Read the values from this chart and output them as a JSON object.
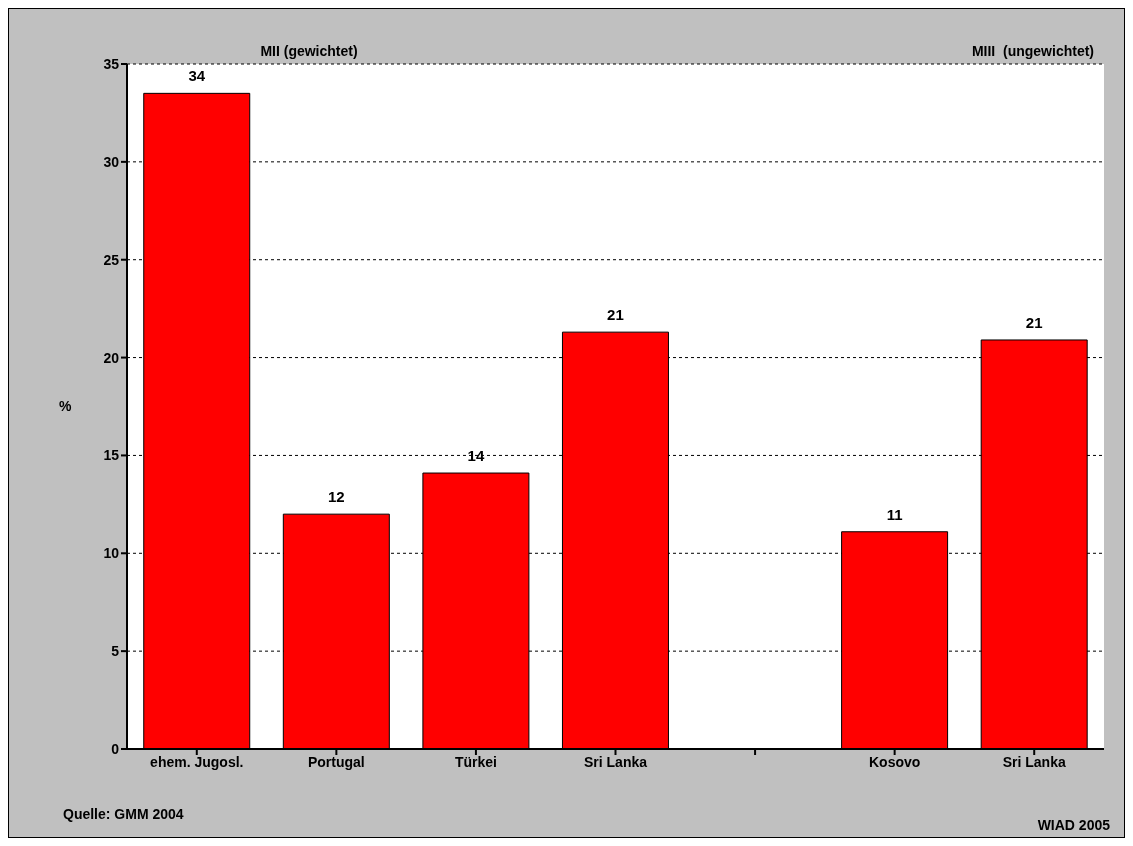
{
  "chart_data": {
    "type": "bar",
    "categories": [
      "ehem. Jugosl.",
      "Portugal",
      "Türkei",
      "Sri Lanka",
      null,
      "Kosovo",
      "Sri Lanka"
    ],
    "values": [
      33.5,
      12,
      14.1,
      21.3,
      null,
      11.1,
      20.9
    ],
    "value_labels": [
      "34",
      "12",
      "14",
      "21",
      null,
      "11",
      "21"
    ],
    "color": "#ff0000",
    "ylabel": "%",
    "ylim": [
      0,
      35
    ],
    "yticks": [
      0,
      5,
      10,
      15,
      20,
      25,
      30,
      35
    ],
    "grid": "y",
    "legend": false,
    "annotations": [
      "MII (gewichtet)",
      "MIII  (ungewichtet)",
      "Quelle: GMM 2004",
      "WIAD 2005"
    ]
  }
}
